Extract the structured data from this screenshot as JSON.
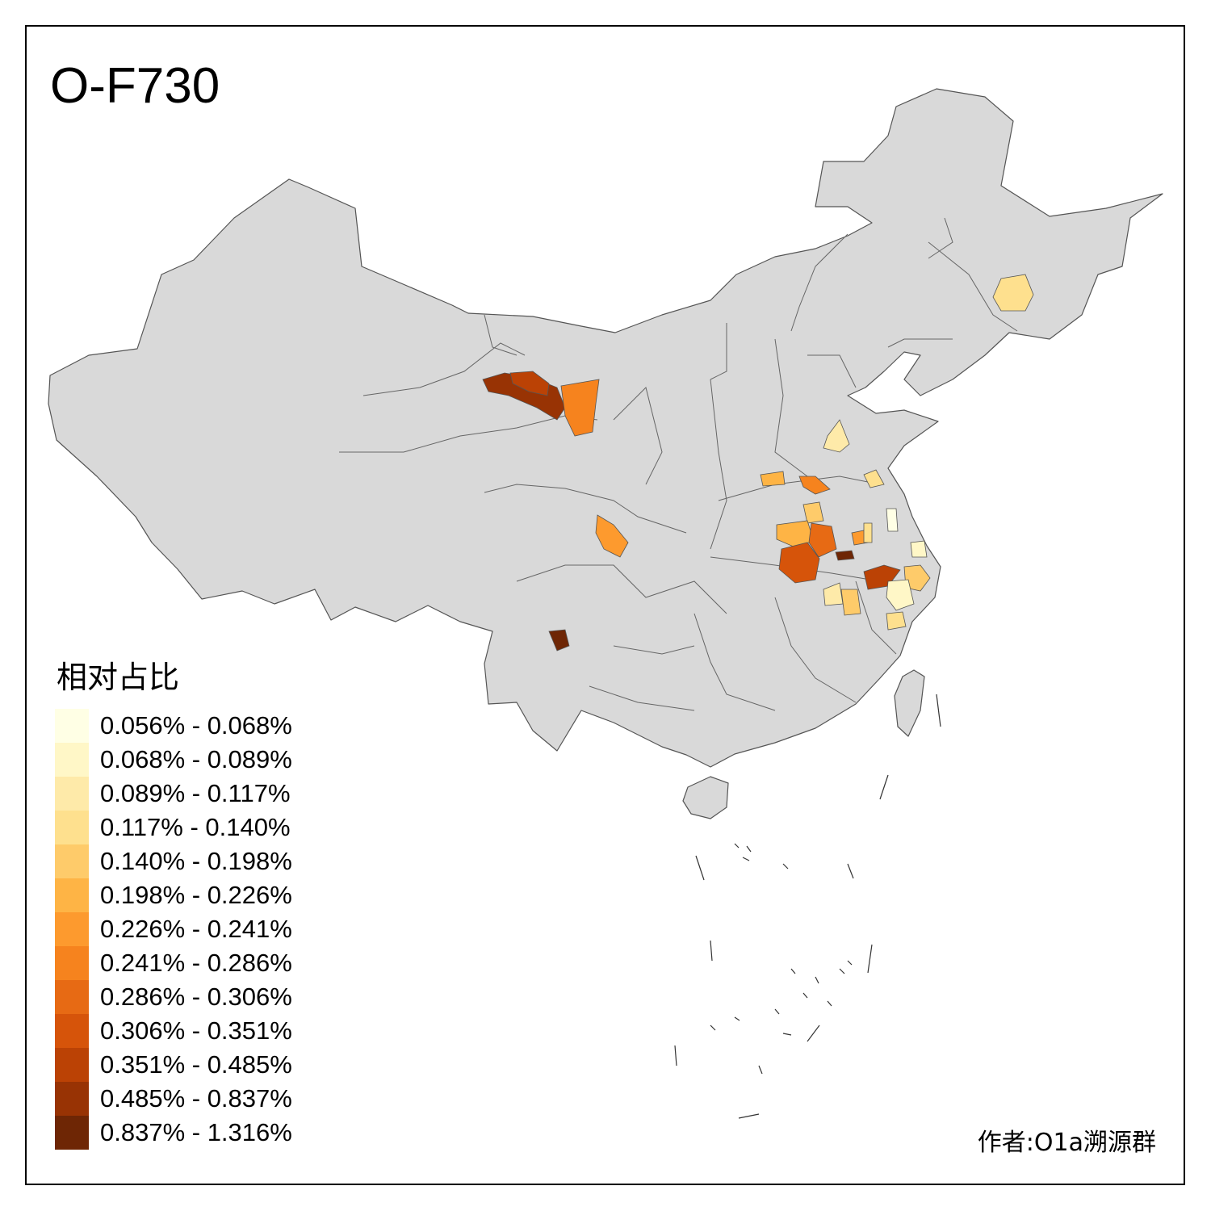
{
  "title": "O-F730",
  "legend": {
    "title": "相对占比",
    "items": [
      {
        "label": "0.056% - 0.068%",
        "color": "#ffffe5"
      },
      {
        "label": "0.068% - 0.089%",
        "color": "#fff7c7"
      },
      {
        "label": "0.089% - 0.117%",
        "color": "#feeaa9"
      },
      {
        "label": "0.117% - 0.140%",
        "color": "#fee08e"
      },
      {
        "label": "0.140% - 0.198%",
        "color": "#fecb6a"
      },
      {
        "label": "0.198% - 0.226%",
        "color": "#feb445"
      },
      {
        "label": "0.226% - 0.241%",
        "color": "#fd9a2e"
      },
      {
        "label": "0.241% - 0.286%",
        "color": "#f6831e"
      },
      {
        "label": "0.286% - 0.306%",
        "color": "#e76a14"
      },
      {
        "label": "0.306% - 0.351%",
        "color": "#d6540a"
      },
      {
        "label": "0.351% - 0.485%",
        "color": "#bb4205"
      },
      {
        "label": "0.485% - 0.837%",
        "color": "#983304"
      },
      {
        "label": "0.837% - 1.316%",
        "color": "#6e2605"
      }
    ]
  },
  "credit": "作者:O1a溯源群",
  "colors": {
    "land": "#d9d9d9",
    "border": "#555555",
    "frame": "#000000"
  }
}
